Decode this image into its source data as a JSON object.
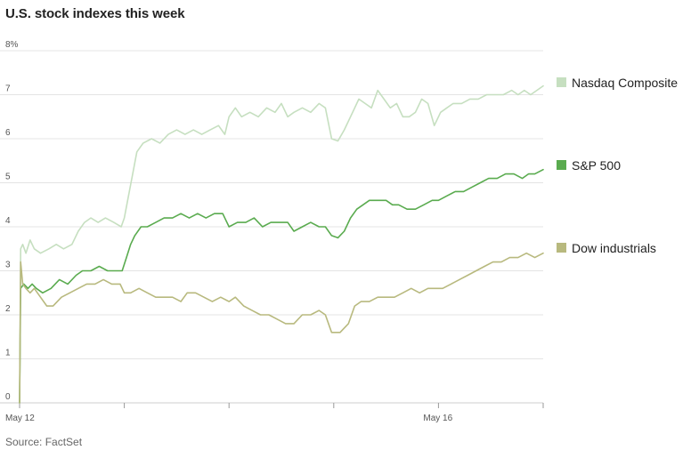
{
  "title": "U.S. stock indexes this week",
  "source": "Source: FactSet",
  "chart_data": {
    "type": "line",
    "title": "U.S. stock indexes this week",
    "xlabel": "",
    "ylabel": "",
    "x_tick_labels": [
      "May 12",
      "May 16"
    ],
    "y_ticks": [
      "0",
      "1",
      "2",
      "3",
      "4",
      "5",
      "6",
      "7",
      "8%"
    ],
    "ylim": [
      0,
      8
    ],
    "xlim": [
      0,
      5
    ],
    "grid": true,
    "legend_placement": "right",
    "series": [
      {
        "name": "Nasdaq Composite",
        "color": "#c6dfc0",
        "points": [
          [
            0.0,
            0.0
          ],
          [
            0.01,
            3.5
          ],
          [
            0.03,
            3.6
          ],
          [
            0.06,
            3.4
          ],
          [
            0.1,
            3.7
          ],
          [
            0.14,
            3.5
          ],
          [
            0.2,
            3.4
          ],
          [
            0.28,
            3.5
          ],
          [
            0.35,
            3.6
          ],
          [
            0.42,
            3.5
          ],
          [
            0.5,
            3.6
          ],
          [
            0.56,
            3.9
          ],
          [
            0.62,
            4.1
          ],
          [
            0.68,
            4.2
          ],
          [
            0.75,
            4.1
          ],
          [
            0.82,
            4.2
          ],
          [
            0.9,
            4.1
          ],
          [
            0.97,
            4.0
          ],
          [
            1.0,
            4.2
          ],
          [
            1.04,
            4.7
          ],
          [
            1.08,
            5.2
          ],
          [
            1.12,
            5.7
          ],
          [
            1.18,
            5.9
          ],
          [
            1.26,
            6.0
          ],
          [
            1.34,
            5.9
          ],
          [
            1.42,
            6.1
          ],
          [
            1.5,
            6.2
          ],
          [
            1.58,
            6.1
          ],
          [
            1.66,
            6.2
          ],
          [
            1.74,
            6.1
          ],
          [
            1.82,
            6.2
          ],
          [
            1.9,
            6.3
          ],
          [
            1.96,
            6.1
          ],
          [
            2.0,
            6.5
          ],
          [
            2.06,
            6.7
          ],
          [
            2.12,
            6.5
          ],
          [
            2.2,
            6.6
          ],
          [
            2.28,
            6.5
          ],
          [
            2.36,
            6.7
          ],
          [
            2.44,
            6.6
          ],
          [
            2.5,
            6.8
          ],
          [
            2.56,
            6.5
          ],
          [
            2.62,
            6.6
          ],
          [
            2.7,
            6.7
          ],
          [
            2.78,
            6.6
          ],
          [
            2.86,
            6.8
          ],
          [
            2.92,
            6.7
          ],
          [
            2.98,
            6.0
          ],
          [
            3.04,
            5.95
          ],
          [
            3.1,
            6.2
          ],
          [
            3.18,
            6.6
          ],
          [
            3.24,
            6.9
          ],
          [
            3.3,
            6.8
          ],
          [
            3.36,
            6.7
          ],
          [
            3.42,
            7.1
          ],
          [
            3.48,
            6.9
          ],
          [
            3.54,
            6.7
          ],
          [
            3.6,
            6.8
          ],
          [
            3.66,
            6.5
          ],
          [
            3.72,
            6.5
          ],
          [
            3.78,
            6.6
          ],
          [
            3.84,
            6.9
          ],
          [
            3.9,
            6.8
          ],
          [
            3.96,
            6.3
          ],
          [
            4.02,
            6.6
          ],
          [
            4.08,
            6.7
          ],
          [
            4.14,
            6.8
          ],
          [
            4.22,
            6.8
          ],
          [
            4.3,
            6.9
          ],
          [
            4.38,
            6.9
          ],
          [
            4.46,
            7.0
          ],
          [
            4.54,
            7.0
          ],
          [
            4.62,
            7.0
          ],
          [
            4.7,
            7.1
          ],
          [
            4.76,
            7.0
          ],
          [
            4.82,
            7.1
          ],
          [
            4.88,
            7.0
          ],
          [
            4.94,
            7.1
          ],
          [
            5.0,
            7.2
          ]
        ]
      },
      {
        "name": "S&P 500",
        "color": "#5aab4f",
        "points": [
          [
            0.0,
            0.0
          ],
          [
            0.01,
            2.6
          ],
          [
            0.04,
            2.7
          ],
          [
            0.08,
            2.6
          ],
          [
            0.12,
            2.7
          ],
          [
            0.16,
            2.6
          ],
          [
            0.22,
            2.5
          ],
          [
            0.3,
            2.6
          ],
          [
            0.38,
            2.8
          ],
          [
            0.46,
            2.7
          ],
          [
            0.54,
            2.9
          ],
          [
            0.6,
            3.0
          ],
          [
            0.68,
            3.0
          ],
          [
            0.76,
            3.1
          ],
          [
            0.84,
            3.0
          ],
          [
            0.92,
            3.0
          ],
          [
            0.98,
            3.0
          ],
          [
            1.02,
            3.3
          ],
          [
            1.06,
            3.6
          ],
          [
            1.1,
            3.8
          ],
          [
            1.16,
            4.0
          ],
          [
            1.22,
            4.0
          ],
          [
            1.3,
            4.1
          ],
          [
            1.38,
            4.2
          ],
          [
            1.46,
            4.2
          ],
          [
            1.54,
            4.3
          ],
          [
            1.62,
            4.2
          ],
          [
            1.7,
            4.3
          ],
          [
            1.78,
            4.2
          ],
          [
            1.86,
            4.3
          ],
          [
            1.94,
            4.3
          ],
          [
            2.0,
            4.0
          ],
          [
            2.08,
            4.1
          ],
          [
            2.16,
            4.1
          ],
          [
            2.24,
            4.2
          ],
          [
            2.32,
            4.0
          ],
          [
            2.4,
            4.1
          ],
          [
            2.48,
            4.1
          ],
          [
            2.56,
            4.1
          ],
          [
            2.62,
            3.9
          ],
          [
            2.7,
            4.0
          ],
          [
            2.78,
            4.1
          ],
          [
            2.86,
            4.0
          ],
          [
            2.92,
            4.0
          ],
          [
            2.98,
            3.8
          ],
          [
            3.04,
            3.75
          ],
          [
            3.1,
            3.9
          ],
          [
            3.16,
            4.2
          ],
          [
            3.22,
            4.4
          ],
          [
            3.28,
            4.5
          ],
          [
            3.34,
            4.6
          ],
          [
            3.42,
            4.6
          ],
          [
            3.5,
            4.6
          ],
          [
            3.56,
            4.5
          ],
          [
            3.62,
            4.5
          ],
          [
            3.7,
            4.4
          ],
          [
            3.78,
            4.4
          ],
          [
            3.86,
            4.5
          ],
          [
            3.94,
            4.6
          ],
          [
            4.0,
            4.6
          ],
          [
            4.08,
            4.7
          ],
          [
            4.16,
            4.8
          ],
          [
            4.24,
            4.8
          ],
          [
            4.32,
            4.9
          ],
          [
            4.4,
            5.0
          ],
          [
            4.48,
            5.1
          ],
          [
            4.56,
            5.1
          ],
          [
            4.64,
            5.2
          ],
          [
            4.72,
            5.2
          ],
          [
            4.8,
            5.1
          ],
          [
            4.86,
            5.2
          ],
          [
            4.92,
            5.2
          ],
          [
            5.0,
            5.3
          ]
        ]
      },
      {
        "name": "Dow industrials",
        "color": "#b8b97e",
        "points": [
          [
            0.0,
            0.0
          ],
          [
            0.01,
            3.2
          ],
          [
            0.03,
            2.7
          ],
          [
            0.06,
            2.6
          ],
          [
            0.1,
            2.5
          ],
          [
            0.14,
            2.6
          ],
          [
            0.2,
            2.4
          ],
          [
            0.26,
            2.2
          ],
          [
            0.32,
            2.2
          ],
          [
            0.4,
            2.4
          ],
          [
            0.48,
            2.5
          ],
          [
            0.56,
            2.6
          ],
          [
            0.64,
            2.7
          ],
          [
            0.72,
            2.7
          ],
          [
            0.8,
            2.8
          ],
          [
            0.88,
            2.7
          ],
          [
            0.96,
            2.7
          ],
          [
            1.0,
            2.5
          ],
          [
            1.06,
            2.5
          ],
          [
            1.14,
            2.6
          ],
          [
            1.22,
            2.5
          ],
          [
            1.3,
            2.4
          ],
          [
            1.38,
            2.4
          ],
          [
            1.46,
            2.4
          ],
          [
            1.54,
            2.3
          ],
          [
            1.6,
            2.5
          ],
          [
            1.68,
            2.5
          ],
          [
            1.76,
            2.4
          ],
          [
            1.84,
            2.3
          ],
          [
            1.92,
            2.4
          ],
          [
            2.0,
            2.3
          ],
          [
            2.06,
            2.4
          ],
          [
            2.14,
            2.2
          ],
          [
            2.22,
            2.1
          ],
          [
            2.3,
            2.0
          ],
          [
            2.38,
            2.0
          ],
          [
            2.46,
            1.9
          ],
          [
            2.54,
            1.8
          ],
          [
            2.62,
            1.8
          ],
          [
            2.7,
            2.0
          ],
          [
            2.78,
            2.0
          ],
          [
            2.86,
            2.1
          ],
          [
            2.92,
            2.0
          ],
          [
            2.98,
            1.6
          ],
          [
            3.06,
            1.6
          ],
          [
            3.14,
            1.8
          ],
          [
            3.2,
            2.2
          ],
          [
            3.26,
            2.3
          ],
          [
            3.34,
            2.3
          ],
          [
            3.42,
            2.4
          ],
          [
            3.5,
            2.4
          ],
          [
            3.58,
            2.4
          ],
          [
            3.66,
            2.5
          ],
          [
            3.74,
            2.6
          ],
          [
            3.82,
            2.5
          ],
          [
            3.9,
            2.6
          ],
          [
            3.98,
            2.6
          ],
          [
            4.04,
            2.6
          ],
          [
            4.12,
            2.7
          ],
          [
            4.2,
            2.8
          ],
          [
            4.28,
            2.9
          ],
          [
            4.36,
            3.0
          ],
          [
            4.44,
            3.1
          ],
          [
            4.52,
            3.2
          ],
          [
            4.6,
            3.2
          ],
          [
            4.68,
            3.3
          ],
          [
            4.76,
            3.3
          ],
          [
            4.84,
            3.4
          ],
          [
            4.92,
            3.3
          ],
          [
            5.0,
            3.4
          ]
        ]
      }
    ]
  }
}
